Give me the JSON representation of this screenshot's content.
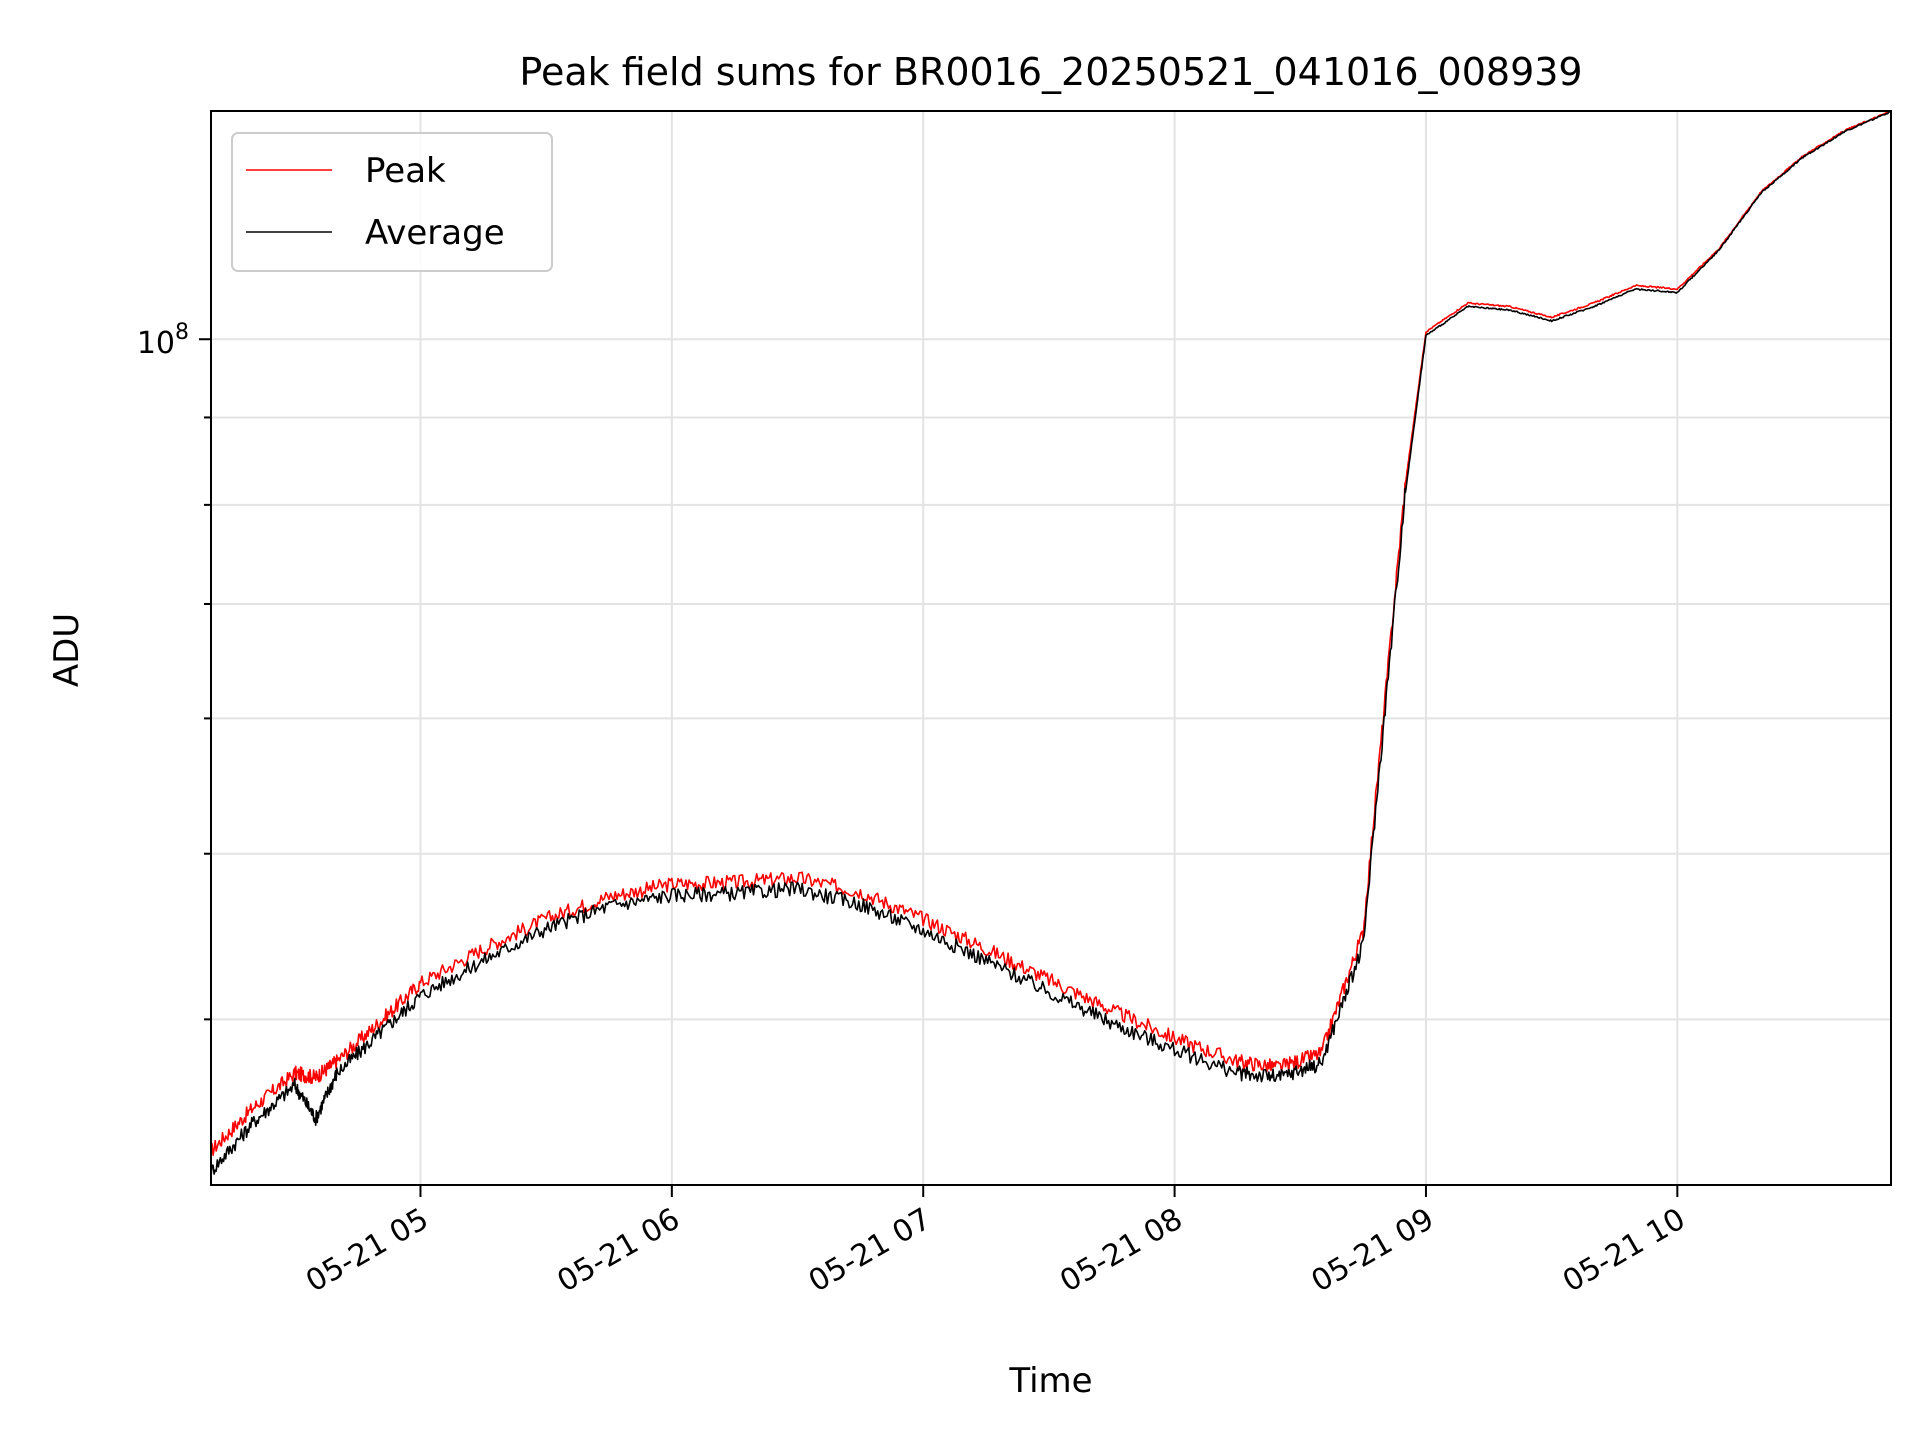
{
  "chart_data": {
    "type": "line",
    "title": "Peak field sums for BR0016_20250521_041016_008939",
    "xlabel": "Time",
    "ylabel": "ADU",
    "y_scale": "log",
    "grid": true,
    "legend_position": "top-left",
    "xlim": [
      "2025-05-21 04:10",
      "2025-05-21 10:51"
    ],
    "ylim": [
      32000000,
      136000000
    ],
    "x_ticks": [
      {
        "value": "2025-05-21 05:00",
        "label": "05-21 05"
      },
      {
        "value": "2025-05-21 06:00",
        "label": "05-21 06"
      },
      {
        "value": "2025-05-21 07:00",
        "label": "05-21 07"
      },
      {
        "value": "2025-05-21 08:00",
        "label": "05-21 08"
      },
      {
        "value": "2025-05-21 09:00",
        "label": "05-21 09"
      },
      {
        "value": "2025-05-21 10:00",
        "label": "05-21 10"
      }
    ],
    "y_ticks": [
      {
        "value": 100000000,
        "label": "10",
        "exponent": "8"
      }
    ],
    "series": [
      {
        "name": "Peak",
        "color": "#ff0000",
        "x": [
          "2025-05-21 04:10",
          "2025-05-21 04:20",
          "2025-05-21 04:30",
          "2025-05-21 04:35",
          "2025-05-21 04:40",
          "2025-05-21 04:50",
          "2025-05-21 05:00",
          "2025-05-21 05:15",
          "2025-05-21 05:30",
          "2025-05-21 05:45",
          "2025-05-21 06:00",
          "2025-05-21 06:15",
          "2025-05-21 06:30",
          "2025-05-21 06:45",
          "2025-05-21 07:00",
          "2025-05-21 07:15",
          "2025-05-21 07:30",
          "2025-05-21 07:45",
          "2025-05-21 08:00",
          "2025-05-21 08:15",
          "2025-05-21 08:25",
          "2025-05-21 08:35",
          "2025-05-21 08:45",
          "2025-05-21 08:55",
          "2025-05-21 09:00",
          "2025-05-21 09:10",
          "2025-05-21 09:20",
          "2025-05-21 09:30",
          "2025-05-21 09:40",
          "2025-05-21 09:50",
          "2025-05-21 10:00",
          "2025-05-21 10:10",
          "2025-05-21 10:20",
          "2025-05-21 10:30",
          "2025-05-21 10:40",
          "2025-05-21 10:51"
        ],
        "values": [
          33500000,
          35500000,
          37200000,
          37000000,
          37800000,
          39800000,
          42000000,
          44000000,
          45800000,
          47200000,
          48000000,
          48100000,
          48400000,
          47500000,
          45800000,
          44000000,
          42200000,
          40500000,
          39000000,
          37800000,
          37500000,
          38200000,
          45000000,
          82000000,
          101000000,
          105000000,
          104500000,
          103000000,
          105000000,
          107500000,
          107000000,
          113000000,
          122000000,
          128000000,
          132500000,
          136000000
        ]
      },
      {
        "name": "Average",
        "color": "#000000",
        "x": [
          "2025-05-21 04:10",
          "2025-05-21 04:20",
          "2025-05-21 04:30",
          "2025-05-21 04:35",
          "2025-05-21 04:40",
          "2025-05-21 04:50",
          "2025-05-21 05:00",
          "2025-05-21 05:15",
          "2025-05-21 05:30",
          "2025-05-21 05:45",
          "2025-05-21 06:00",
          "2025-05-21 06:15",
          "2025-05-21 06:30",
          "2025-05-21 06:45",
          "2025-05-21 07:00",
          "2025-05-21 07:15",
          "2025-05-21 07:30",
          "2025-05-21 07:45",
          "2025-05-21 08:00",
          "2025-05-21 08:15",
          "2025-05-21 08:25",
          "2025-05-21 08:35",
          "2025-05-21 08:45",
          "2025-05-21 08:55",
          "2025-05-21 09:00",
          "2025-05-21 09:10",
          "2025-05-21 09:20",
          "2025-05-21 09:30",
          "2025-05-21 09:40",
          "2025-05-21 09:50",
          "2025-05-21 10:00",
          "2025-05-21 10:10",
          "2025-05-21 10:20",
          "2025-05-21 10:30",
          "2025-05-21 10:40",
          "2025-05-21 10:51"
        ],
        "values": [
          32600000,
          34800000,
          36600000,
          35000000,
          37200000,
          39200000,
          41300000,
          43300000,
          45200000,
          46600000,
          47300000,
          47400000,
          47700000,
          46700000,
          45100000,
          43300000,
          41500000,
          39800000,
          38400000,
          37200000,
          37000000,
          37700000,
          44200000,
          81000000,
          100500000,
          104500000,
          104000000,
          102500000,
          104500000,
          107000000,
          106500000,
          112800000,
          121800000,
          127800000,
          132300000,
          135900000
        ]
      }
    ]
  }
}
